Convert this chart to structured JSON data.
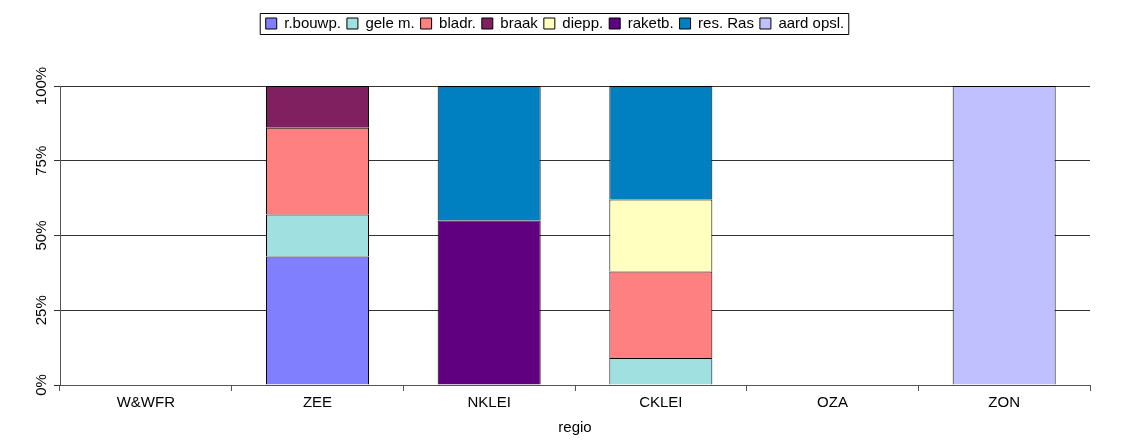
{
  "chart_data": {
    "type": "bar",
    "stacked": true,
    "xlabel": "regio",
    "categories": [
      "W&WFR",
      "ZEE",
      "NKLEI",
      "CKLEI",
      "OZA",
      "ZON"
    ],
    "series": [
      {
        "name": "r.bouwp.",
        "color": "#8080ff",
        "values": [
          null,
          43,
          null,
          null,
          null,
          null
        ]
      },
      {
        "name": "gele m.",
        "color": "#a0e0e0",
        "values": [
          null,
          14,
          null,
          9,
          null,
          null
        ]
      },
      {
        "name": "bladr.",
        "color": "#ff8080",
        "values": [
          null,
          29,
          null,
          29,
          null,
          null
        ]
      },
      {
        "name": "braak",
        "color": "#802060",
        "values": [
          null,
          14,
          null,
          null,
          null,
          null
        ]
      },
      {
        "name": "diepp.",
        "color": "#ffffc0",
        "values": [
          null,
          null,
          null,
          24,
          null,
          null
        ]
      },
      {
        "name": "raketb.",
        "color": "#600080",
        "values": [
          null,
          null,
          55,
          null,
          null,
          null
        ]
      },
      {
        "name": "res. Ras",
        "color": "#0080c0",
        "values": [
          null,
          null,
          45,
          38,
          null,
          null
        ]
      },
      {
        "name": "aard opsl.",
        "color": "#c0c0ff",
        "values": [
          null,
          null,
          null,
          null,
          null,
          100
        ]
      }
    ],
    "ylim": [
      0,
      100
    ],
    "yticks": [
      {
        "value": 0,
        "label": "0%"
      },
      {
        "value": 25,
        "label": "25%"
      },
      {
        "value": 50,
        "label": "50%"
      },
      {
        "value": 75,
        "label": "75%"
      },
      {
        "value": 100,
        "label": "100%"
      }
    ],
    "grid": "y",
    "legend": "top"
  }
}
